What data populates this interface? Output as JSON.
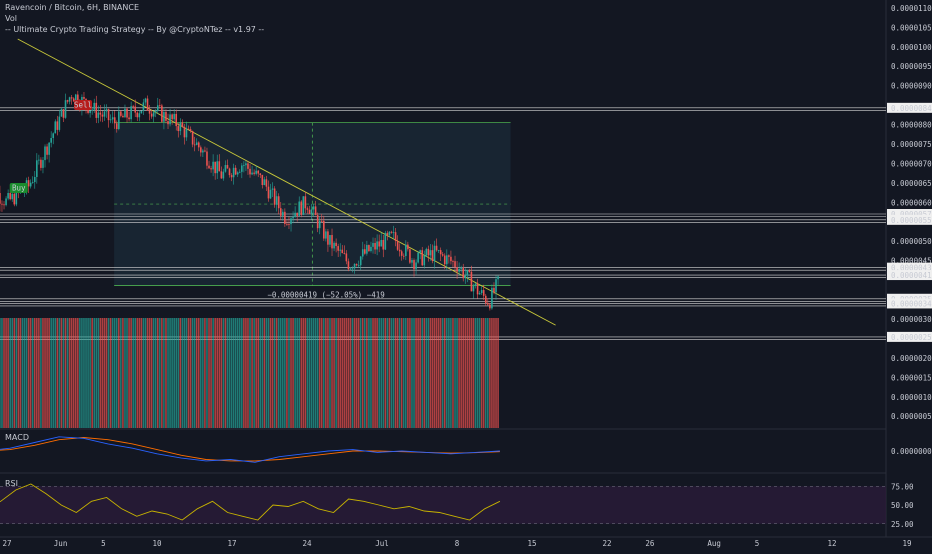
{
  "header": {
    "symbol_line": "Ravencoin / Bitcoin, 6H, BINANCE",
    "volume_label": "Vol",
    "strategy_label": "-- Ultimate Crypto Trading Strategy -- By @CryptoNTez -- v1.97 --"
  },
  "colors": {
    "background": "#131722",
    "up": "#26a69a",
    "down": "#ef5350",
    "trendline": "#c8c83a",
    "macd_line": "#2962ff",
    "signal_line": "#ff6d00",
    "rsi_line": "#c8b400",
    "rsi_band": "#2a1c3a",
    "measure_box": "#1b2b38"
  },
  "signals": [
    {
      "label": "Sell",
      "color": "#b71c1c",
      "date": "Jun 3"
    },
    {
      "label": "Buy",
      "color": "#1b8c2e",
      "date": "May 28"
    }
  ],
  "measurement": {
    "label": "−0.00000419 (−52.05%) −419",
    "from_price": 8.05e-06,
    "to_price": 3.86e-06
  },
  "price_axis": {
    "ticks": [
      "0.00001100",
      "0.00001050",
      "0.00001000",
      "0.00000950",
      "0.00000900",
      "0.00000800",
      "0.00000750",
      "0.00000700",
      "0.00000650",
      "0.00000600",
      "0.00000500",
      "0.00000450",
      "0.00000350",
      "0.00000300",
      "0.00000250",
      "0.00000200",
      "0.00000150",
      "0.00000100",
      "0.00000050"
    ],
    "highlighted": [
      "0.00000843",
      "0.00000570",
      "0.00000555",
      "0.00000432",
      "0.00000413",
      "0.00000352",
      "0.00000340",
      "0.00000254"
    ]
  },
  "macd_panel": {
    "label": "MACD",
    "ticks": [
      "0.00000000"
    ]
  },
  "rsi_panel": {
    "label": "RSI",
    "ticks": [
      "75.00",
      "50.00",
      "25.00"
    ]
  },
  "time_axis": {
    "labels": [
      "27",
      "Jun",
      "5",
      "10",
      "17",
      "24",
      "Jul",
      "8",
      "15",
      "22",
      "26",
      "Aug",
      "5",
      "12",
      "19"
    ]
  },
  "chart_data": {
    "type": "candlestick",
    "title": "Ravencoin / Bitcoin, 6H, BINANCE",
    "y_range": [
      2.54e-06,
      1.1e-05
    ],
    "horizontal_levels": [
      8.43e-06,
      5.7e-06,
      5.55e-06,
      4.32e-06,
      4.13e-06,
      3.52e-06,
      3.4e-06,
      2.54e-06
    ],
    "trendline": [
      {
        "date": "May 28",
        "price": 1.02e-05
      },
      {
        "date": "Jul 13",
        "price": 3.1e-06
      }
    ],
    "price_path": [
      {
        "date": "May 25",
        "price": 6.5e-06
      },
      {
        "date": "May 27",
        "price": 6e-06
      },
      {
        "date": "May 29",
        "price": 6.4e-06
      },
      {
        "date": "May 31",
        "price": 7.6e-06
      },
      {
        "date": "Jun 2",
        "price": 8.8e-06
      },
      {
        "date": "Jun 4",
        "price": 8.4e-06
      },
      {
        "date": "Jun 6",
        "price": 8.05e-06
      },
      {
        "date": "Jun 9",
        "price": 8.5e-06
      },
      {
        "date": "Jun 12",
        "price": 8e-06
      },
      {
        "date": "Jun 14",
        "price": 7.4e-06
      },
      {
        "date": "Jun 16",
        "price": 6.7e-06
      },
      {
        "date": "Jun 18",
        "price": 7e-06
      },
      {
        "date": "Jun 20",
        "price": 6.5e-06
      },
      {
        "date": "Jun 22",
        "price": 5.6e-06
      },
      {
        "date": "Jun 24",
        "price": 6e-06
      },
      {
        "date": "Jun 26",
        "price": 5e-06
      },
      {
        "date": "Jun 28",
        "price": 4.4e-06
      },
      {
        "date": "Jun 30",
        "price": 4.8e-06
      },
      {
        "date": "Jul 2",
        "price": 5.1e-06
      },
      {
        "date": "Jul 4",
        "price": 4.5e-06
      },
      {
        "date": "Jul 6",
        "price": 4.7e-06
      },
      {
        "date": "Jul 8",
        "price": 4.4e-06
      },
      {
        "date": "Jul 10",
        "price": 3.7e-06
      },
      {
        "date": "Jul 11",
        "price": 3.45e-06
      },
      {
        "date": "Jul 12",
        "price": 4e-06
      }
    ],
    "volume": [
      5e-07,
      7e-07,
      6e-07,
      8e-07,
      1.1e-06,
      1.5e-06,
      2e-06,
      1.2e-06,
      1.8e-06,
      1.4e-06,
      1e-06,
      9e-07,
      8e-07,
      1.2e-06,
      7e-07,
      9e-07,
      1.1e-06,
      1.3e-06,
      1.6e-06,
      1.1e-06,
      1.5e-06,
      8e-07,
      1e-06,
      1.2e-06,
      8e-07,
      9e-07,
      6e-07,
      7e-07,
      8e-07,
      6e-07,
      7e-07,
      9e-07,
      8e-07,
      1e-06,
      9e-07,
      8e-07,
      7e-07,
      8e-07,
      6e-07,
      7e-07,
      8e-07,
      6e-07,
      7e-07,
      6e-07,
      8e-07,
      9e-07,
      7e-07,
      6e-07,
      7e-07,
      6e-07,
      1e-06
    ],
    "rsi": [
      45,
      55,
      70,
      78,
      65,
      50,
      40,
      55,
      60,
      45,
      35,
      42,
      38,
      30,
      45,
      55,
      40,
      35,
      30,
      50,
      48,
      55,
      45,
      40,
      58,
      55,
      50,
      45,
      48,
      42,
      40,
      35,
      30,
      45,
      55
    ],
    "macd": [
      0.0,
      0.2,
      0.6,
      1.0,
      0.9,
      0.5,
      0.2,
      -0.2,
      -0.5,
      -0.7,
      -0.6,
      -0.8,
      -0.4,
      -0.2,
      0.0,
      0.1,
      -0.1,
      0.0,
      -0.1,
      -0.2,
      -0.1,
      0.0
    ],
    "signal": [
      0.0,
      0.1,
      0.4,
      0.8,
      0.95,
      0.8,
      0.5,
      0.1,
      -0.3,
      -0.6,
      -0.7,
      -0.7,
      -0.6,
      -0.4,
      -0.2,
      0.0,
      0.0,
      -0.05,
      -0.1,
      -0.15,
      -0.12,
      -0.05
    ]
  }
}
